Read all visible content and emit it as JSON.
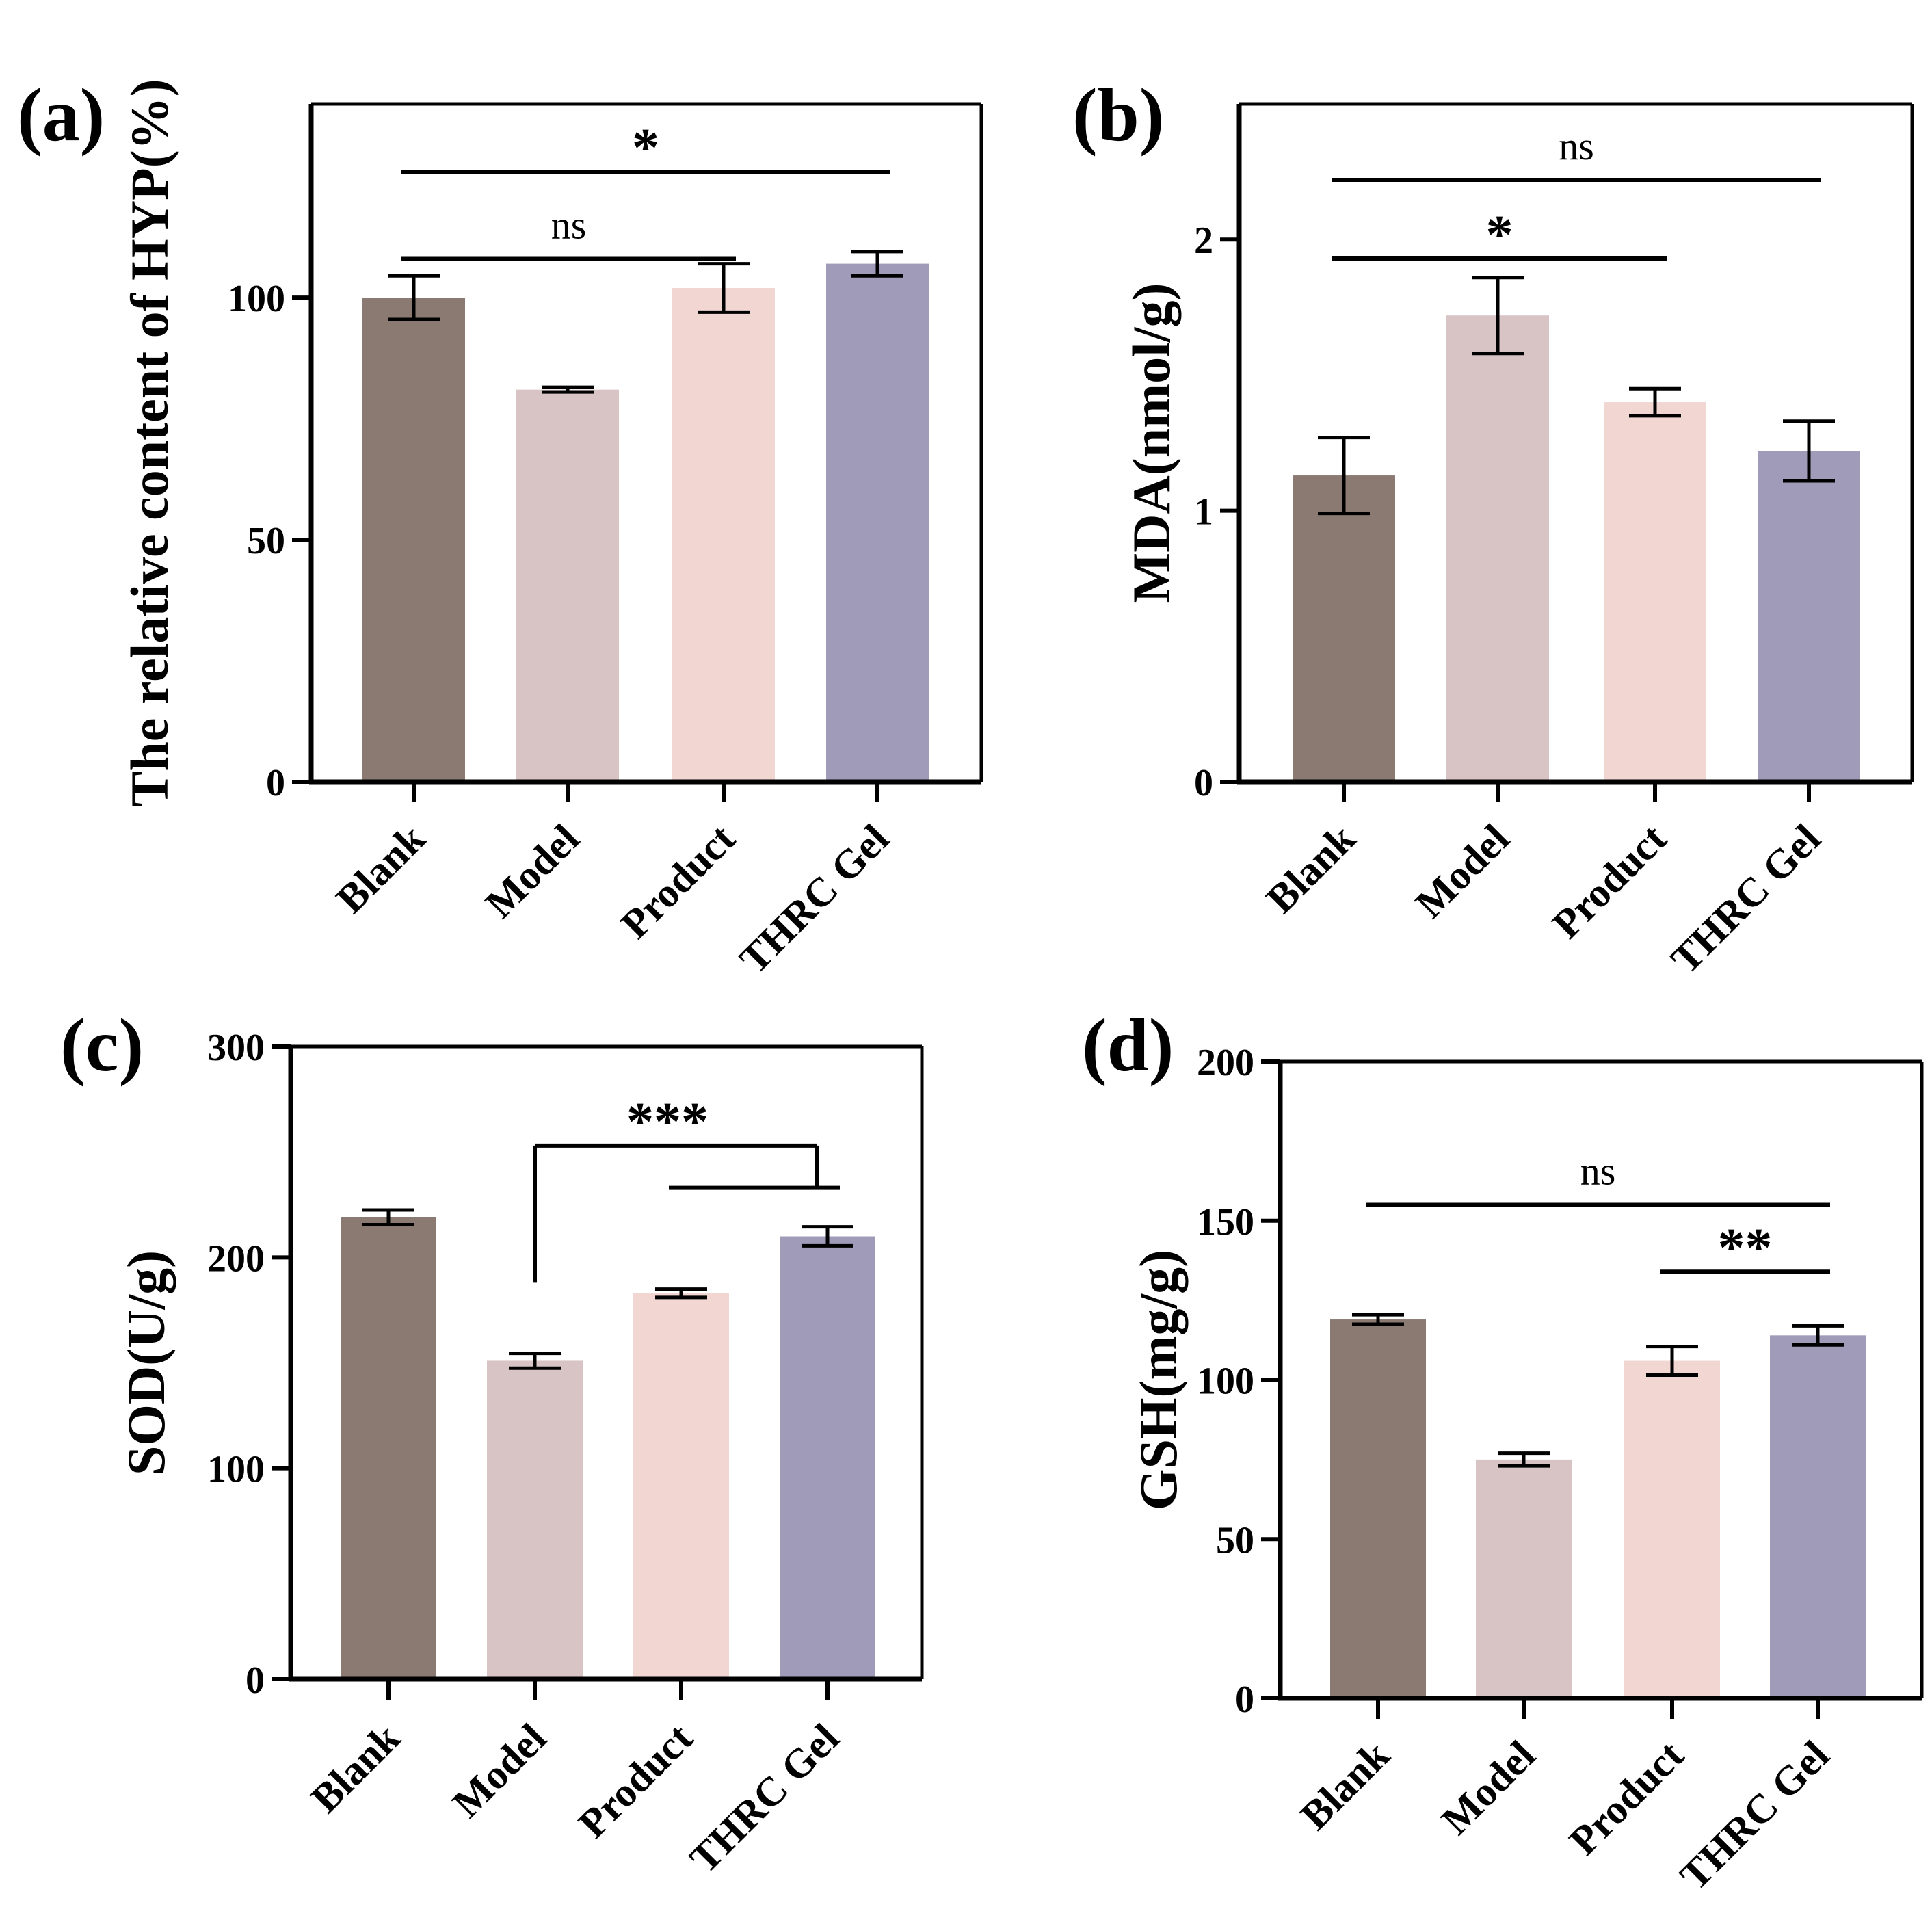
{
  "colors": {
    "Blank": "#8a7a71",
    "Model": "#d9c4c5",
    "Product": "#f2d6d2",
    "THRC Gel": "#a09bb8",
    "axis": "#000000"
  },
  "chart_data": [
    {
      "panel": "(a)",
      "type": "bar",
      "title": "",
      "xlabel": "",
      "ylabel": "The relative content of HYP(%)",
      "ylim": [
        0,
        140
      ],
      "yticks": [
        0,
        50,
        100
      ],
      "ytick_labels": [
        "0",
        "50",
        "100"
      ],
      "categories": [
        "Blank",
        "Model",
        "Product",
        "THRC Gel"
      ],
      "values": [
        100,
        81,
        102,
        107
      ],
      "errors": [
        4.5,
        0.5,
        5,
        2.5
      ],
      "significance": [
        {
          "from": 0,
          "to": 3,
          "label": "*",
          "y": 126
        },
        {
          "from": 0,
          "to": 2,
          "label": "ns",
          "y": 108
        }
      ]
    },
    {
      "panel": "(b)",
      "type": "bar",
      "title": "",
      "xlabel": "",
      "ylabel": "MDA(nmol/g)",
      "ylim": [
        0,
        2.5
      ],
      "yticks": [
        0,
        1,
        2
      ],
      "ytick_labels": [
        "0",
        "1",
        "2"
      ],
      "categories": [
        "Blank",
        "Model",
        "Product",
        "THRC Gel"
      ],
      "values": [
        1.13,
        1.72,
        1.4,
        1.22
      ],
      "errors": [
        0.14,
        0.14,
        0.05,
        0.11
      ],
      "significance": [
        {
          "from": 0,
          "to": 3,
          "label": "ns",
          "y": 2.22
        },
        {
          "from": 0,
          "to": 2,
          "label": "*",
          "y": 1.93
        }
      ]
    },
    {
      "panel": "(c)",
      "type": "bar",
      "title": "",
      "xlabel": "",
      "ylabel": "SOD(U/g)",
      "ylim": [
        0,
        300
      ],
      "yticks": [
        0,
        100,
        200,
        300
      ],
      "ytick_labels": [
        "0",
        "100",
        "200",
        "300"
      ],
      "categories": [
        "Blank",
        "Model",
        "Product",
        "THRC Gel"
      ],
      "values": [
        219,
        151,
        183,
        210
      ],
      "errors": [
        3.5,
        3.5,
        2,
        4.5
      ],
      "significance": [
        {
          "bracket": true,
          "from": 1,
          "to": 3,
          "label": "***",
          "y": 253,
          "drop_left": 188,
          "drop_right": 233
        },
        {
          "from": 2,
          "to": 3,
          "label": "",
          "y": 233
        }
      ]
    },
    {
      "panel": "(d)",
      "type": "bar",
      "title": "",
      "xlabel": "",
      "ylabel": "GSH(mg/g)",
      "ylim": [
        0,
        200
      ],
      "yticks": [
        0,
        50,
        100,
        150,
        200
      ],
      "ytick_labels": [
        "0",
        "50",
        "100",
        "150",
        "200"
      ],
      "categories": [
        "Blank",
        "Model",
        "Product",
        "THRC Gel"
      ],
      "values": [
        119,
        75,
        106,
        114
      ],
      "errors": [
        1.5,
        2,
        4.5,
        3
      ],
      "significance": [
        {
          "from": 0,
          "to": 3,
          "label": "ns",
          "y": 155
        },
        {
          "from": 2,
          "to": 3,
          "label": "**",
          "y": 134
        }
      ]
    }
  ]
}
